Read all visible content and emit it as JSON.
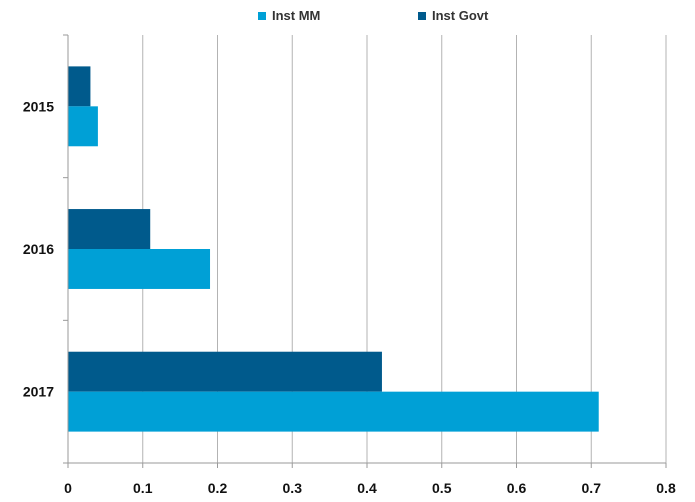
{
  "chart_data": {
    "type": "bar",
    "orientation": "horizontal",
    "categories": [
      "2015",
      "2016",
      "2017"
    ],
    "series": [
      {
        "name": "Inst MM",
        "values": [
          0.04,
          0.19,
          0.71
        ],
        "color": "#00a0d6"
      },
      {
        "name": "Inst Govt",
        "values": [
          0.03,
          0.11,
          0.42
        ],
        "color": "#005a8c"
      }
    ],
    "xlim": [
      0,
      0.8
    ],
    "xticks": [
      "0",
      "0.1",
      "0.2",
      "0.3",
      "0.4",
      "0.5",
      "0.6",
      "0.7",
      "0.8"
    ],
    "grid": "vertical",
    "legend": "top-center",
    "title": "",
    "xlabel": "",
    "ylabel": ""
  }
}
